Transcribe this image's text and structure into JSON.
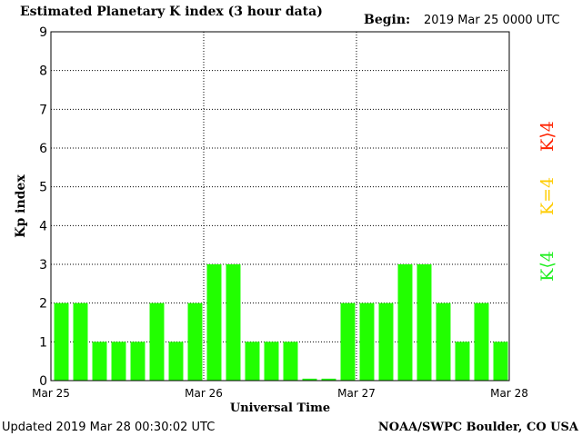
{
  "header": {
    "title": "Estimated Planetary K index (3 hour data)",
    "begin_label": "Begin:",
    "begin_value": "2019 Mar 25 0000 UTC"
  },
  "footer": {
    "updated": "Updated 2019 Mar 28 00:30:02 UTC",
    "source": "NOAA/SWPC Boulder, CO USA"
  },
  "legend": {
    "high": "K⟩4",
    "equal": "K=4",
    "low": "K⟨4"
  },
  "colors": {
    "bar": "#22ff00",
    "high": "#ff2200",
    "equal": "#ffcc00",
    "low": "#22ee22",
    "grid": "#000000",
    "text": "#000000"
  },
  "chart_data": {
    "type": "bar",
    "title": "Estimated Planetary K index (3 hour data)",
    "xlabel": "Universal Time",
    "ylabel": "Kp index",
    "ylim": [
      0,
      9
    ],
    "yticks": [
      "0",
      "1",
      "2",
      "3",
      "4",
      "5",
      "6",
      "7",
      "8",
      "9"
    ],
    "xticks": [
      "Mar 25",
      "Mar 26",
      "Mar 27",
      "Mar 28"
    ],
    "grid": true,
    "bars_per_day": 8,
    "values": [
      2,
      2,
      1,
      1,
      1,
      2,
      1,
      2,
      3,
      3,
      1,
      1,
      1,
      0.05,
      0.05,
      2,
      2,
      2,
      3,
      3,
      2,
      1,
      2,
      1
    ]
  }
}
